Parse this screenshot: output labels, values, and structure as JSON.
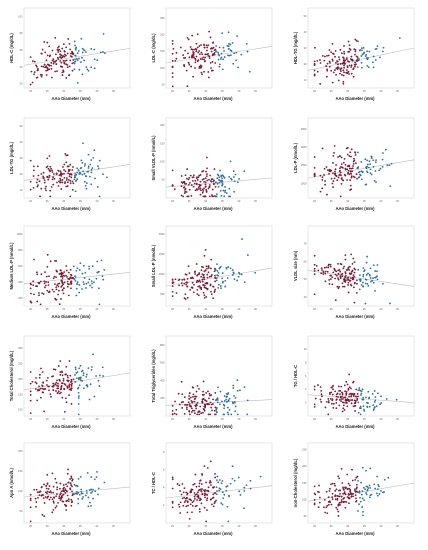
{
  "figure": {
    "colors": {
      "red": "#7a1a33",
      "blue": "#2f6f9f",
      "fit_line": "#bbbbbb",
      "frame": "#cfcfcf"
    }
  },
  "chart_data": [
    {
      "type": "scatter",
      "ylabel": "HDL-C (mg/dL)",
      "xlabel": "AAo Diameter (mm)",
      "x_ticks": [
        "20",
        "25",
        "30",
        "35",
        "40",
        "45"
      ],
      "y_ticks": [
        "20",
        "40",
        "60",
        "80",
        "100"
      ],
      "xlim": [
        18,
        50
      ],
      "ylim": [
        15,
        110
      ],
      "fit": [
        [
          18,
          42
        ],
        [
          50,
          62
        ]
      ],
      "grid": false,
      "red_max_x": 33,
      "seed": 11
    },
    {
      "type": "scatter",
      "ylabel": "LDL-C (mg/dL)",
      "xlabel": "AAo Diameter (mm)",
      "x_ticks": [
        "20",
        "25",
        "30",
        "35",
        "40",
        "45"
      ],
      "y_ticks": [
        "50",
        "100",
        "150",
        "200",
        "250"
      ],
      "xlim": [
        18,
        50
      ],
      "ylim": [
        40,
        280
      ],
      "fit": [
        [
          18,
          115
        ],
        [
          50,
          165
        ]
      ],
      "grid": false,
      "red_max_x": 33,
      "seed": 23
    },
    {
      "type": "scatter",
      "ylabel": "HDL-TG (mg/dL)",
      "xlabel": "AAo Diameter (mm)",
      "x_ticks": [
        "20",
        "25",
        "30",
        "35",
        "40",
        "45"
      ],
      "y_ticks": [
        "10",
        "20",
        "30",
        "40",
        "50"
      ],
      "xlim": [
        18,
        50
      ],
      "ylim": [
        5,
        55
      ],
      "fit": [
        [
          18,
          16
        ],
        [
          50,
          30
        ]
      ],
      "grid": false,
      "red_max_x": 33,
      "seed": 37
    },
    {
      "type": "scatter",
      "ylabel": "LDL-TG (mg/dL)",
      "xlabel": "AAo Diameter (mm)",
      "x_ticks": [
        "20",
        "25",
        "30",
        "35",
        "40",
        "45"
      ],
      "y_ticks": [
        "10",
        "20",
        "30",
        "40",
        "50"
      ],
      "xlim": [
        18,
        50
      ],
      "ylim": [
        5,
        55
      ],
      "fit": [
        [
          18,
          16
        ],
        [
          50,
          26
        ]
      ],
      "grid": false,
      "red_max_x": 33,
      "seed": 41
    },
    {
      "type": "scatter",
      "ylabel": "Small VLDL-P (nmol/L)",
      "xlabel": "AAo Diameter (mm)",
      "x_ticks": [
        "20",
        "25",
        "30",
        "35",
        "40",
        "45"
      ],
      "y_ticks": [
        "50",
        "100",
        "150",
        "200"
      ],
      "xlim": [
        18,
        50
      ],
      "ylim": [
        0,
        220
      ],
      "fit": [
        [
          18,
          30
        ],
        [
          50,
          55
        ]
      ],
      "grid": false,
      "red_max_x": 33,
      "seed": 53
    },
    {
      "type": "scatter",
      "ylabel": "LDL-P (nmol/L)",
      "xlabel": "AAo Diameter (mm)",
      "x_ticks": [
        "20",
        "25",
        "30",
        "35",
        "40",
        "45"
      ],
      "y_ticks": [
        "1000",
        "1500",
        "2000",
        "2500"
      ],
      "xlim": [
        18,
        50
      ],
      "ylim": [
        600,
        2800
      ],
      "fit": [
        [
          18,
          1150
        ],
        [
          50,
          1650
        ]
      ],
      "grid": false,
      "red_max_x": 33,
      "seed": 67
    },
    {
      "type": "scatter",
      "ylabel": "Medium LDL-P (nmol/L)",
      "xlabel": "AAo Diameter (mm)",
      "x_ticks": [
        "20",
        "25",
        "30",
        "35",
        "40",
        "45"
      ],
      "y_ticks": [
        "200",
        "400",
        "600",
        "800",
        "1000"
      ],
      "xlim": [
        18,
        50
      ],
      "ylim": [
        100,
        1100
      ],
      "fit": [
        [
          18,
          380
        ],
        [
          50,
          520
        ]
      ],
      "grid": false,
      "red_max_x": 33,
      "seed": 71
    },
    {
      "type": "scatter",
      "ylabel": "Small LDL-P (nmol/L)",
      "xlabel": "AAo Diameter (mm)",
      "x_ticks": [
        "20",
        "25",
        "30",
        "35",
        "40",
        "45"
      ],
      "y_ticks": [
        "500",
        "1000",
        "1500",
        "2000"
      ],
      "xlim": [
        18,
        50
      ],
      "ylim": [
        200,
        2200
      ],
      "fit": [
        [
          18,
          700
        ],
        [
          50,
          1150
        ]
      ],
      "grid": false,
      "red_max_x": 33,
      "seed": 83
    },
    {
      "type": "scatter",
      "ylabel": "VLDL size (nm)",
      "xlabel": "AAo Diameter (mm)",
      "x_ticks": [
        "20",
        "25",
        "30",
        "35",
        "40",
        "45"
      ],
      "y_ticks": [
        "40",
        "50",
        "60",
        "70"
      ],
      "xlim": [
        18,
        50
      ],
      "ylim": [
        35,
        80
      ],
      "fit": [
        [
          18,
          55
        ],
        [
          50,
          46
        ]
      ],
      "grid": false,
      "red_max_x": 33,
      "seed": 97
    },
    {
      "type": "scatter",
      "ylabel": "Total Cholesterol (mg/dL)",
      "xlabel": "AAo Diameter (mm)",
      "x_ticks": [
        "20",
        "25",
        "30",
        "35",
        "40",
        "45"
      ],
      "y_ticks": [
        "100",
        "150",
        "200",
        "250",
        "300"
      ],
      "xlim": [
        18,
        50
      ],
      "ylim": [
        80,
        340
      ],
      "fit": [
        [
          18,
          165
        ],
        [
          50,
          220
        ]
      ],
      "grid": false,
      "red_max_x": 33,
      "seed": 101
    },
    {
      "type": "scatter",
      "ylabel": "Total Triglycerides (mg/dL)",
      "xlabel": "AAo Diameter (mm)",
      "x_ticks": [
        "20",
        "25",
        "30",
        "35",
        "40",
        "45"
      ],
      "y_ticks": [
        "200",
        "400",
        "600",
        "800"
      ],
      "xlim": [
        18,
        50
      ],
      "ylim": [
        0,
        900
      ],
      "fit": [
        [
          18,
          120
        ],
        [
          50,
          185
        ]
      ],
      "grid": false,
      "red_max_x": 33,
      "seed": 113
    },
    {
      "type": "scatter",
      "ylabel": "TG / HDL-C",
      "xlabel": "AAo Diameter (mm)",
      "x_ticks": [
        "20",
        "25",
        "30",
        "35",
        "40",
        "45"
      ],
      "y_ticks": [
        "2",
        "4",
        "6",
        "8",
        "10"
      ],
      "xlim": [
        18,
        50
      ],
      "ylim": [
        0,
        12
      ],
      "fit": [
        [
          18,
          3.2
        ],
        [
          50,
          2.0
        ]
      ],
      "grid": false,
      "red_max_x": 33,
      "seed": 127
    },
    {
      "type": "scatter",
      "ylabel": "Apo A (nmol/L)",
      "xlabel": "AAo Diameter (mm)",
      "x_ticks": [
        "20",
        "25",
        "30",
        "35",
        "40",
        "45"
      ],
      "y_ticks": [
        "50",
        "100",
        "150",
        "200"
      ],
      "xlim": [
        18,
        50
      ],
      "ylim": [
        20,
        220
      ],
      "fit": [
        [
          18,
          85
        ],
        [
          50,
          110
        ]
      ],
      "grid": false,
      "red_max_x": 33,
      "seed": 131
    },
    {
      "type": "scatter",
      "ylabel": "TC / HDL-C",
      "xlabel": "AAo Diameter (mm)",
      "x_ticks": [
        "20",
        "25",
        "30",
        "35",
        "40",
        "45"
      ],
      "y_ticks": [
        "2",
        "4",
        "6",
        "8"
      ],
      "xlim": [
        18,
        50
      ],
      "ylim": [
        0,
        9
      ],
      "fit": [
        [
          18,
          2.8
        ],
        [
          50,
          4.2
        ]
      ],
      "grid": false,
      "red_max_x": 33,
      "seed": 139
    },
    {
      "type": "scatter",
      "ylabel": "non-Cholesterol (mg/dL)",
      "xlabel": "AAo Diameter (mm)",
      "x_ticks": [
        "20",
        "25",
        "30",
        "35",
        "40",
        "45"
      ],
      "y_ticks": [
        "50",
        "100",
        "150",
        "200",
        "250"
      ],
      "xlim": [
        18,
        50
      ],
      "ylim": [
        30,
        270
      ],
      "fit": [
        [
          18,
          95
        ],
        [
          50,
          150
        ]
      ],
      "grid": false,
      "red_max_x": 33,
      "seed": 149
    }
  ]
}
